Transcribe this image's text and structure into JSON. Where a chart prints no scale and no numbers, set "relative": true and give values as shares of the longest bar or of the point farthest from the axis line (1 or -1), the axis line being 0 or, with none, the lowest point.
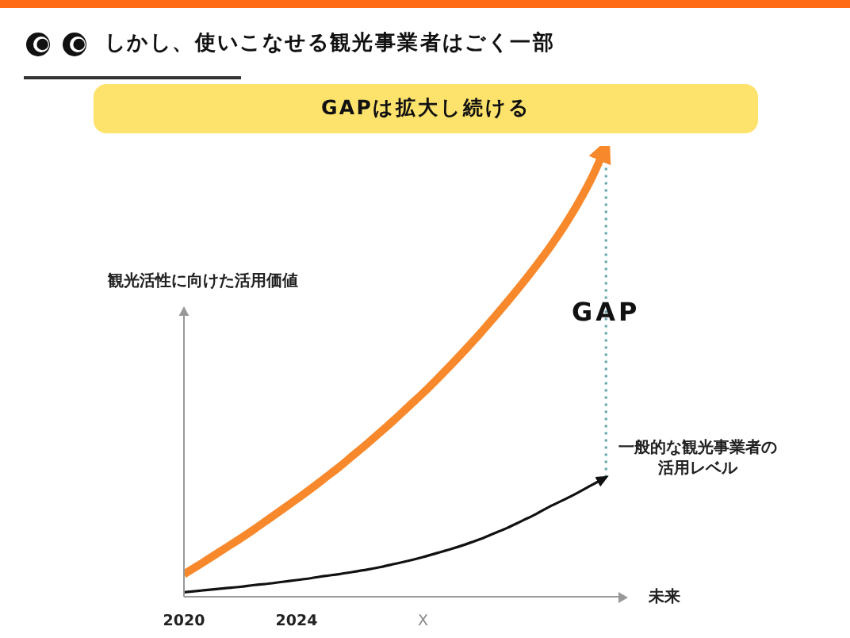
{
  "chart_data": {
    "type": "line",
    "title": "しかし、使いこなせる観光事業者はごく一部",
    "subtitle": "GAPは拡大し続ける",
    "ylabel": "観光活性に向けた活用価値",
    "xlabel": "未来",
    "relative": true,
    "x": [
      2020,
      2020.5,
      2021,
      2021.5,
      2022,
      2022.5,
      2023,
      2023.5,
      2024,
      2024.5,
      2025,
      2025.5,
      2026,
      2026.5,
      2027,
      2027.5,
      2028,
      2028.5,
      2029,
      2029.5,
      2030,
      2030.5,
      2031,
      2031.5,
      2032,
      2032.5,
      2033,
      2033.5,
      2034,
      2034.5,
      2035
    ],
    "xlim": [
      2020,
      2035.5
    ],
    "xticks": [
      2020,
      2024,
      {
        "value": 2028.5,
        "label": "X"
      }
    ],
    "series": [
      {
        "color": "#f7892c",
        "values": [
          0.05,
          0.069,
          0.089,
          0.109,
          0.129,
          0.15,
          0.172,
          0.194,
          0.216,
          0.239,
          0.263,
          0.287,
          0.313,
          0.339,
          0.366,
          0.394,
          0.423,
          0.452,
          0.483,
          0.515,
          0.548,
          0.582,
          0.618,
          0.655,
          0.693,
          0.733,
          0.775,
          0.821,
          0.872,
          0.93,
          1
        ]
      },
      {
        "name": "一般的な観光事業者の活用レベル",
        "color": "#111111",
        "values": [
          0.01,
          0.013,
          0.016,
          0.019,
          0.022,
          0.026,
          0.029,
          0.033,
          0.037,
          0.041,
          0.046,
          0.05,
          0.055,
          0.06,
          0.066,
          0.073,
          0.08,
          0.088,
          0.097,
          0.106,
          0.116,
          0.127,
          0.14,
          0.153,
          0.168,
          0.183,
          0.2,
          0.215,
          0.231,
          0.248,
          0.265
        ]
      }
    ],
    "ref_lines": [
      {
        "axis": "x",
        "value": 2035,
        "label": "GAP",
        "color": "#67a7ad",
        "line_style": "dotted"
      }
    ]
  }
}
